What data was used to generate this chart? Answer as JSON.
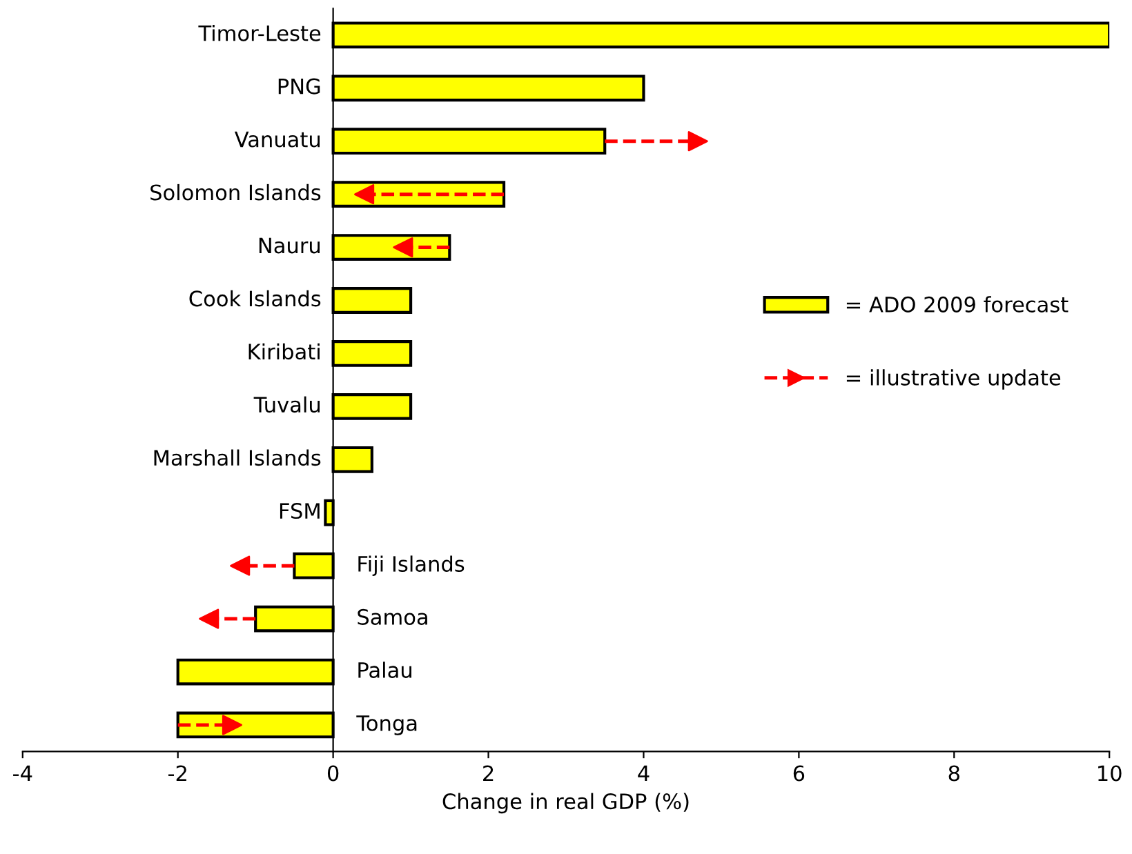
{
  "chart_data": {
    "type": "bar",
    "orientation": "horizontal",
    "xlabel": "Change in real GDP (%)",
    "categories": [
      "Timor-Leste",
      "PNG",
      "Vanuatu",
      "Solomon Islands",
      "Nauru",
      "Cook Islands",
      "Kiribati",
      "Tuvalu",
      "Marshall Islands",
      "FSM",
      "Fiji Islands",
      "Samoa",
      "Palau",
      "Tonga"
    ],
    "series": [
      {
        "name": "= ADO 2009 forecast",
        "color": "#ffff00",
        "values": [
          10,
          4,
          3.5,
          2.2,
          1.5,
          1,
          1,
          1,
          0.5,
          -0.1,
          -0.5,
          -1,
          -2,
          -2
        ]
      },
      {
        "name": "= illustrative update",
        "type": "scatter",
        "marker": "triangle",
        "color": "#ff0000",
        "line_style": "dashed",
        "values": [
          null,
          null,
          4.7,
          0.4,
          0.9,
          null,
          null,
          null,
          null,
          null,
          -1.2,
          -1.6,
          null,
          -1.3
        ]
      }
    ],
    "xlim": [
      -4,
      10
    ],
    "xticks": [
      -4,
      -2,
      0,
      2,
      4,
      6,
      8,
      10
    ],
    "grid": false,
    "legend": "right"
  }
}
